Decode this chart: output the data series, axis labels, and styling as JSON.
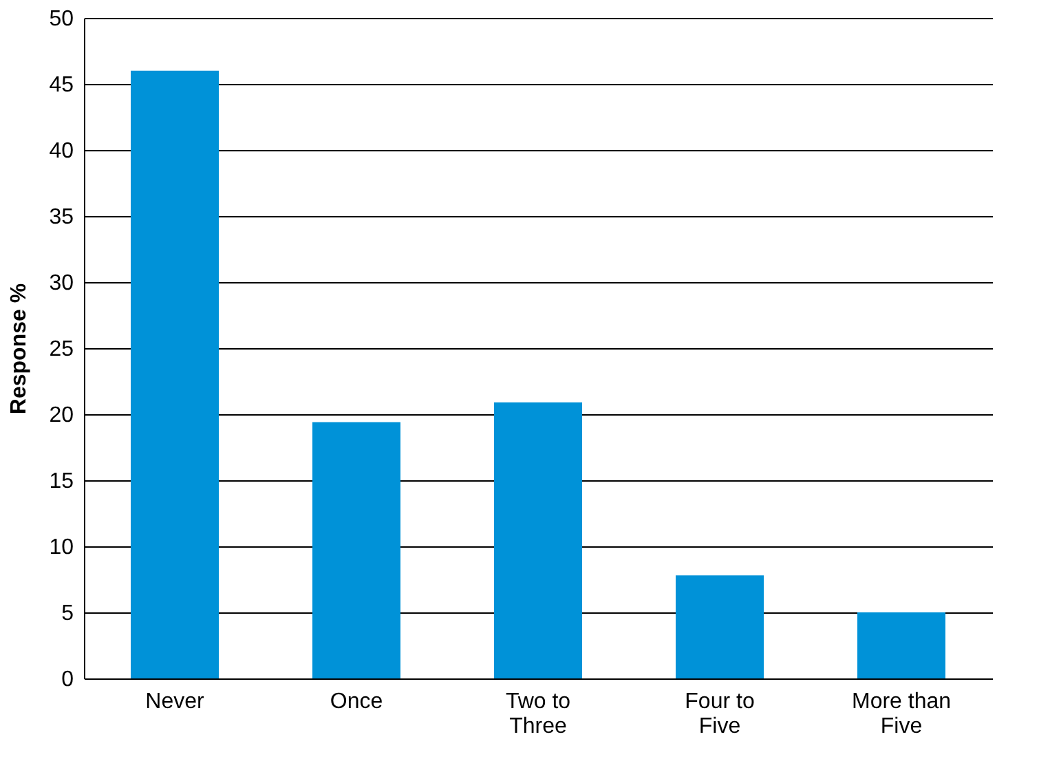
{
  "chart_data": {
    "type": "bar",
    "ylabel": "Response %",
    "categories": [
      "Never",
      "Once",
      "Two to Three",
      "Four to Five",
      "More than Five"
    ],
    "values": [
      46.0,
      19.4,
      20.9,
      7.8,
      5.0
    ],
    "color": "#0092d8",
    "ylim": [
      0,
      50
    ],
    "yticks": [
      0,
      5,
      10,
      15,
      20,
      25,
      30,
      35,
      40,
      45,
      50
    ],
    "grid": "y"
  }
}
